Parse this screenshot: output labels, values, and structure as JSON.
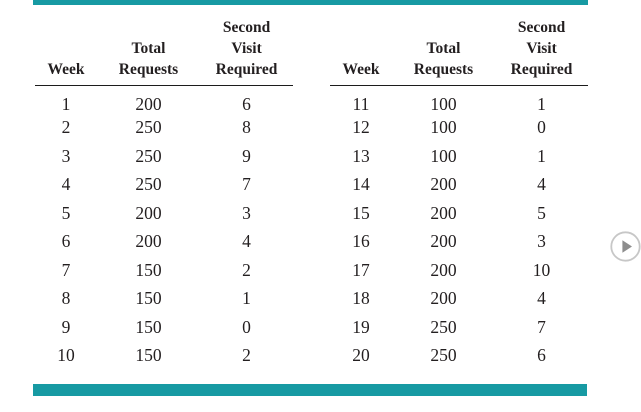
{
  "colors": {
    "accent": "#179aa3",
    "text": "#231f20",
    "rule": "#1c1c1c",
    "page_bg": "#ffffff",
    "button_border": "#c7c7c7",
    "button_glyph": "#8d8d8d"
  },
  "tables": [
    {
      "headers": [
        "Week",
        "Total\nRequests",
        "Second\nVisit\nRequired"
      ],
      "rows": [
        [
          "1",
          "200",
          "6"
        ],
        [
          "2",
          "250",
          "8"
        ],
        [
          "3",
          "250",
          "9"
        ],
        [
          "4",
          "250",
          "7"
        ],
        [
          "5",
          "200",
          "3"
        ],
        [
          "6",
          "200",
          "4"
        ],
        [
          "7",
          "150",
          "2"
        ],
        [
          "8",
          "150",
          "1"
        ],
        [
          "9",
          "150",
          "0"
        ],
        [
          "10",
          "150",
          "2"
        ]
      ]
    },
    {
      "headers": [
        "Week",
        "Total\nRequests",
        "Second\nVisit\nRequired"
      ],
      "rows": [
        [
          "11",
          "100",
          "1"
        ],
        [
          "12",
          "100",
          "0"
        ],
        [
          "13",
          "100",
          "1"
        ],
        [
          "14",
          "200",
          "4"
        ],
        [
          "15",
          "200",
          "5"
        ],
        [
          "16",
          "200",
          "3"
        ],
        [
          "17",
          "200",
          "10"
        ],
        [
          "18",
          "200",
          "4"
        ],
        [
          "19",
          "250",
          "7"
        ],
        [
          "20",
          "250",
          "6"
        ]
      ]
    }
  ],
  "next_button": {
    "icon": "play-icon"
  }
}
